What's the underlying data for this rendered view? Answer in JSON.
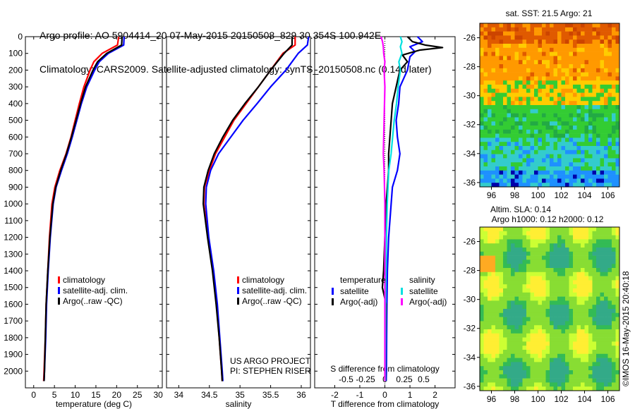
{
  "header": {
    "line1": "Argo profile: AO 5904414_20 07-May-2015 20150508_829 30.354S 100.942E",
    "line2": "Climatology: CARS2009. Satellite-adjusted climatology: synTS_20150508.nc (0.14d later)"
  },
  "chart_data": [
    {
      "type": "line",
      "panel": "temperature",
      "xlabel": "temperature (deg C)",
      "ylabel": "",
      "xlim": [
        -2,
        31
      ],
      "ylim": [
        2100,
        0
      ],
      "xticks": [
        0,
        5,
        10,
        15,
        20,
        25,
        30
      ],
      "yticks": [
        0,
        100,
        200,
        300,
        400,
        500,
        600,
        700,
        800,
        900,
        1000,
        1100,
        1200,
        1300,
        1400,
        1500,
        1600,
        1700,
        1800,
        1900,
        2000
      ],
      "legend": [
        "climatology",
        "satellite-adj. clim.",
        "Argo(..raw -QC)"
      ],
      "series": [
        {
          "name": "climatology",
          "color": "#ff0000",
          "depth": [
            0,
            50,
            100,
            150,
            200,
            300,
            400,
            500,
            600,
            700,
            800,
            900,
            1000,
            1200,
            1400,
            1600,
            1800,
            2000,
            2060
          ],
          "values": [
            20.5,
            20.2,
            16.5,
            14.5,
            13.6,
            12.1,
            11.0,
            10.0,
            9.0,
            7.8,
            6.3,
            5.1,
            4.4,
            3.8,
            3.4,
            3.0,
            2.8,
            2.5,
            2.4
          ]
        },
        {
          "name": "satellite-adj. clim.",
          "color": "#0000ff",
          "depth": [
            0,
            50,
            100,
            150,
            200,
            300,
            400,
            500,
            600,
            700,
            800,
            900,
            1000,
            1200,
            1400,
            1600,
            1800,
            2000,
            2060
          ],
          "values": [
            21.8,
            21.7,
            18.0,
            15.8,
            14.7,
            12.8,
            11.5,
            10.4,
            9.3,
            8.1,
            6.7,
            5.4,
            4.7,
            4.0,
            3.5,
            3.1,
            2.9,
            2.6,
            2.5
          ]
        },
        {
          "name": "Argo(..raw -QC)",
          "color": "#000000",
          "depth": [
            0,
            50,
            100,
            150,
            200,
            300,
            400,
            500,
            600,
            700,
            800,
            900,
            1000,
            1200,
            1400,
            1600,
            1800,
            2000,
            2060
          ],
          "values": [
            21.3,
            21.2,
            17.6,
            15.4,
            14.3,
            12.5,
            11.3,
            10.2,
            9.1,
            7.9,
            6.5,
            5.3,
            4.6,
            3.9,
            3.4,
            3.0,
            2.8,
            2.6,
            2.5
          ]
        }
      ]
    },
    {
      "type": "line",
      "panel": "salinity",
      "xlabel": "salinity",
      "ylabel": "",
      "xlim": [
        33.8,
        36.15
      ],
      "ylim": [
        2100,
        0
      ],
      "xticks": [
        34,
        34.5,
        35,
        35.5,
        36
      ],
      "xticklabels": [
        "34",
        "34.5",
        "35",
        "35.5",
        "36"
      ],
      "legend": [
        "climatology",
        "satellite-adj. clim.",
        "Argo(..raw -QC)"
      ],
      "annotation": [
        "US ARGO PROJECT",
        "PI: STEPHEN RISER"
      ],
      "series": [
        {
          "name": "climatology",
          "color": "#ff0000",
          "depth": [
            0,
            50,
            100,
            200,
            300,
            400,
            500,
            600,
            700,
            800,
            900,
            1000,
            1200,
            1400,
            1600,
            1800,
            2000,
            2060
          ],
          "values": [
            35.9,
            35.9,
            35.7,
            35.5,
            35.3,
            35.1,
            34.9,
            34.75,
            34.6,
            34.5,
            34.42,
            34.41,
            34.48,
            34.56,
            34.62,
            34.66,
            34.7,
            34.71
          ]
        },
        {
          "name": "satellite-adj. clim.",
          "color": "#0000ff",
          "depth": [
            0,
            50,
            100,
            200,
            300,
            400,
            500,
            600,
            700,
            800,
            900,
            1000,
            1200,
            1400,
            1600,
            1800,
            2000,
            2060
          ],
          "values": [
            36.12,
            36.1,
            35.95,
            35.75,
            35.5,
            35.28,
            35.05,
            34.85,
            34.65,
            34.52,
            34.45,
            34.44,
            34.49,
            34.57,
            34.63,
            34.67,
            34.71,
            34.72
          ]
        },
        {
          "name": "Argo(..raw -QC)",
          "color": "#000000",
          "depth": [
            0,
            50,
            100,
            200,
            300,
            400,
            500,
            600,
            700,
            800,
            900,
            1000,
            1200,
            1400,
            1600,
            1800,
            2000,
            2060
          ],
          "values": [
            35.85,
            35.85,
            35.72,
            35.5,
            35.3,
            35.08,
            34.88,
            34.72,
            34.58,
            34.48,
            34.41,
            34.4,
            34.47,
            34.55,
            34.61,
            34.66,
            34.7,
            34.71
          ]
        }
      ]
    },
    {
      "type": "line",
      "panel": "difference",
      "xlabel": "T difference from climatology",
      "xlabel2": "S difference from climatology",
      "xlim": [
        -2.8,
        2.8
      ],
      "ylim": [
        2100,
        0
      ],
      "xticks": [
        -2,
        -1,
        0,
        1,
        2
      ],
      "xticks2": [
        -0.5,
        -0.25,
        0,
        0.25,
        0.5
      ],
      "xticklabels2": [
        "-0.5",
        "-0.25",
        "0",
        "0.25",
        "0.5"
      ],
      "legend_groups": [
        {
          "title": "temperature",
          "entries": [
            "satellite",
            "Argo(-adj)"
          ]
        },
        {
          "title": "salinity",
          "entries": [
            "satellite",
            "Argo(-adj)"
          ]
        }
      ],
      "series": [
        {
          "name": "satellite",
          "group": "temperature",
          "color": "#0000ff",
          "depth": [
            0,
            30,
            60,
            90,
            120,
            200,
            300,
            400,
            500,
            600,
            700,
            800,
            900,
            1000,
            1200,
            1400,
            1600,
            1800,
            2000,
            2060
          ],
          "values": [
            1.3,
            1.5,
            1.0,
            1.2,
            1.0,
            0.9,
            0.6,
            0.55,
            0.45,
            0.5,
            0.6,
            0.5,
            0.3,
            0.25,
            0.15,
            0.1,
            0.08,
            0.07,
            0.06,
            0.05
          ]
        },
        {
          "name": "Argo(-adj)",
          "group": "temperature",
          "color": "#000000",
          "depth": [
            0,
            30,
            50,
            65,
            80,
            110,
            150,
            200,
            300,
            400,
            500,
            600,
            700,
            800,
            900,
            1000,
            1200,
            1400,
            1500,
            1600,
            1800,
            2000,
            2060
          ],
          "values": [
            0.9,
            1.1,
            1.6,
            2.3,
            1.4,
            0.7,
            0.9,
            0.6,
            0.45,
            0.3,
            0.25,
            0.2,
            0.15,
            0.15,
            0.1,
            0.05,
            0.0,
            -0.05,
            -0.1,
            0.05,
            0.03,
            0.02,
            0.02
          ]
        },
        {
          "name": "satellite",
          "group": "salinity",
          "color": "#00e0e0",
          "depth": [
            0,
            30,
            60,
            100,
            150,
            200,
            300,
            400,
            500,
            600,
            700,
            800,
            900,
            1000,
            1200,
            1400,
            1600,
            1800,
            2000,
            2060
          ],
          "values": [
            0.2,
            0.22,
            0.2,
            0.22,
            0.18,
            0.2,
            0.17,
            0.15,
            0.12,
            0.1,
            0.08,
            0.05,
            0.04,
            0.03,
            0.02,
            0.015,
            0.01,
            0.008,
            0.005,
            0.005
          ]
        },
        {
          "name": "Argo(-adj)",
          "group": "salinity",
          "color": "#ff00ff",
          "depth": [
            0,
            30,
            60,
            100,
            150,
            200,
            300,
            400,
            500,
            600,
            700,
            800,
            900,
            1000,
            1200,
            1400,
            1600,
            1800,
            2000,
            2060
          ],
          "values": [
            -0.05,
            -0.03,
            -0.02,
            -0.015,
            0.0,
            -0.01,
            0.0,
            -0.005,
            -0.01,
            -0.015,
            -0.02,
            -0.01,
            -0.005,
            0.0,
            0.0,
            0.0,
            0.0,
            0.0,
            0.0,
            0.0
          ]
        }
      ]
    },
    {
      "type": "heatmap",
      "panel": "sst-map",
      "title": "sat. SST: 21.5  Argo: 21",
      "xlim": [
        95,
        107
      ],
      "ylim": [
        -36.3,
        -25
      ],
      "xticks": [
        96,
        98,
        100,
        102,
        104,
        106
      ],
      "yticks": [
        -26,
        -28,
        -30,
        -32,
        -34,
        -36
      ],
      "palette": {
        "warm": "#ff9900",
        "hot": "#e05a00",
        "mid": "#ffcc00",
        "green": "#33cc33",
        "teal": "#33cccc",
        "blue": "#1e90ff",
        "deep": "#0000aa"
      }
    },
    {
      "type": "heatmap",
      "panel": "sla-map",
      "title_lines": [
        "Altim. SLA: 0.14",
        "Argo h1000: 0.12  h2000: 0.12"
      ],
      "xlim": [
        95,
        107
      ],
      "ylim": [
        -36.3,
        -25
      ],
      "xticks": [
        96,
        98,
        100,
        102,
        104,
        106
      ],
      "yticks": [
        -26,
        -28,
        -30,
        -32,
        -34,
        -36
      ],
      "palette": {
        "base": "#88dd33",
        "light": "#ccff33",
        "yellow": "#ffee33",
        "orange": "#ffaa22",
        "green": "#33bb55",
        "teal": "#33aa88"
      }
    }
  ],
  "stamp": "©IMOS 16-May-2015 20:40:18"
}
